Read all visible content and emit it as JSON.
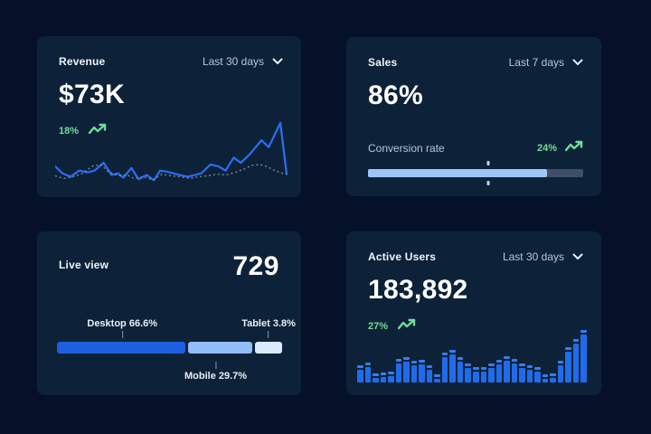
{
  "theme": {
    "page_bg": "#051129",
    "card_bg": "#0d2238",
    "text_primary": "#f0f4fa",
    "text_secondary": "#b9c5d6",
    "green": "#71dc99",
    "line_blue": "#2d6bf0",
    "dotted_gray": "#7d8aa0",
    "bar_blue": "#1f6ceb",
    "bar_cap": "#3a7cf0",
    "progress_fill": "#9cc6f8",
    "progress_track": "#3f4f68",
    "desktop_blue": "#1d5fe0",
    "mobile_blue": "#92bdf8",
    "tablet_blue": "#dbe9fc"
  },
  "cards": {
    "revenue": {
      "title": "Revenue",
      "range_label": "Last 30 days",
      "value": "$73K",
      "delta": "18%",
      "trend": "up"
    },
    "sales": {
      "title": "Sales",
      "range_label": "Last 7 days",
      "value": "86%",
      "metric_label": "Conversion rate",
      "delta": "24%",
      "trend": "up",
      "progress_display_percent": 83,
      "marker_percent": 56
    },
    "live_view": {
      "title": "Live view",
      "value": "729",
      "segments": [
        {
          "name": "Desktop",
          "label": "Desktop 66.6%",
          "value": 66.6,
          "display_percent": 56.5,
          "anchor_percent": 29,
          "label_side": "above",
          "color": "#1d5fe0"
        },
        {
          "name": "Mobile",
          "label": "Mobile 29.7%",
          "value": 29.7,
          "display_percent": 28.5,
          "anchor_percent": 70.5,
          "label_side": "below",
          "color": "#92bdf8"
        },
        {
          "name": "Tablet",
          "label": "Tablet 3.8%",
          "value": 3.8,
          "display_percent": 12,
          "anchor_percent": 94,
          "label_side": "above",
          "color": "#dbe9fc"
        }
      ]
    },
    "active_users": {
      "title": "Active Users",
      "range_label": "Last 30 days",
      "value": "183,892",
      "delta": "27%",
      "trend": "up"
    }
  },
  "chart_data": [
    {
      "id": "revenue_trend",
      "type": "line",
      "title": "Revenue sparkline (Last 30 days)",
      "axes_visible": false,
      "note": "unlabeled sparkline; points in 260x75 viewBox coords, y down",
      "series": [
        {
          "name": "current",
          "style": "solid",
          "color": "#2d6bf0",
          "points": [
            [
              0,
              52
            ],
            [
              8,
              60
            ],
            [
              17,
              64
            ],
            [
              27,
              57
            ],
            [
              36,
              59
            ],
            [
              44,
              57
            ],
            [
              54,
              48
            ],
            [
              63,
              62
            ],
            [
              70,
              60
            ],
            [
              76,
              65
            ],
            [
              85,
              54
            ],
            [
              93,
              67
            ],
            [
              102,
              62
            ],
            [
              110,
              68
            ],
            [
              117,
              57
            ],
            [
              124,
              58
            ],
            [
              131,
              60
            ],
            [
              139,
              62
            ],
            [
              148,
              64
            ],
            [
              156,
              62
            ],
            [
              163,
              60
            ],
            [
              173,
              50
            ],
            [
              182,
              52
            ],
            [
              190,
              57
            ],
            [
              199,
              42
            ],
            [
              207,
              48
            ],
            [
              217,
              38
            ],
            [
              230,
              22
            ],
            [
              238,
              30
            ],
            [
              251,
              2
            ],
            [
              258,
              61
            ]
          ]
        },
        {
          "name": "previous",
          "style": "dotted",
          "color": "#7d8aa0",
          "points": [
            [
              0,
              63
            ],
            [
              10,
              66
            ],
            [
              20,
              64
            ],
            [
              31,
              60
            ],
            [
              41,
              52
            ],
            [
              51,
              50
            ],
            [
              59,
              58
            ],
            [
              70,
              63
            ],
            [
              80,
              62
            ],
            [
              88,
              66
            ],
            [
              99,
              64
            ],
            [
              109,
              68
            ],
            [
              119,
              61
            ],
            [
              129,
              63
            ],
            [
              139,
              64
            ],
            [
              150,
              66
            ],
            [
              160,
              64
            ],
            [
              170,
              63
            ],
            [
              180,
              61
            ],
            [
              190,
              62
            ],
            [
              201,
              59
            ],
            [
              211,
              55
            ],
            [
              219,
              51
            ],
            [
              228,
              50
            ],
            [
              235,
              52
            ],
            [
              245,
              57
            ],
            [
              253,
              60
            ],
            [
              258,
              61
            ]
          ]
        }
      ]
    },
    {
      "id": "sales_conversion",
      "type": "progress",
      "title": "Conversion rate",
      "value_label": "24%",
      "fill_percent": 83,
      "marker_percent": 56
    },
    {
      "id": "live_device_share",
      "type": "stacked-bar",
      "title": "Live view device share",
      "categories": [
        "Desktop",
        "Mobile",
        "Tablet"
      ],
      "values": [
        66.6,
        29.7,
        3.8
      ],
      "unit": "%"
    },
    {
      "id": "active_users_bars",
      "type": "bar",
      "title": "Active Users (Last 30 days)",
      "axes_visible": false,
      "note": "unlabeled bars; values are relative heights in px, max 60",
      "values": [
        19,
        22,
        10,
        11,
        12,
        26,
        28,
        24,
        25,
        19,
        9,
        33,
        36,
        28,
        21,
        17,
        17,
        21,
        25,
        29,
        26,
        21,
        19,
        17,
        9,
        10,
        24,
        39,
        48,
        58
      ]
    }
  ]
}
